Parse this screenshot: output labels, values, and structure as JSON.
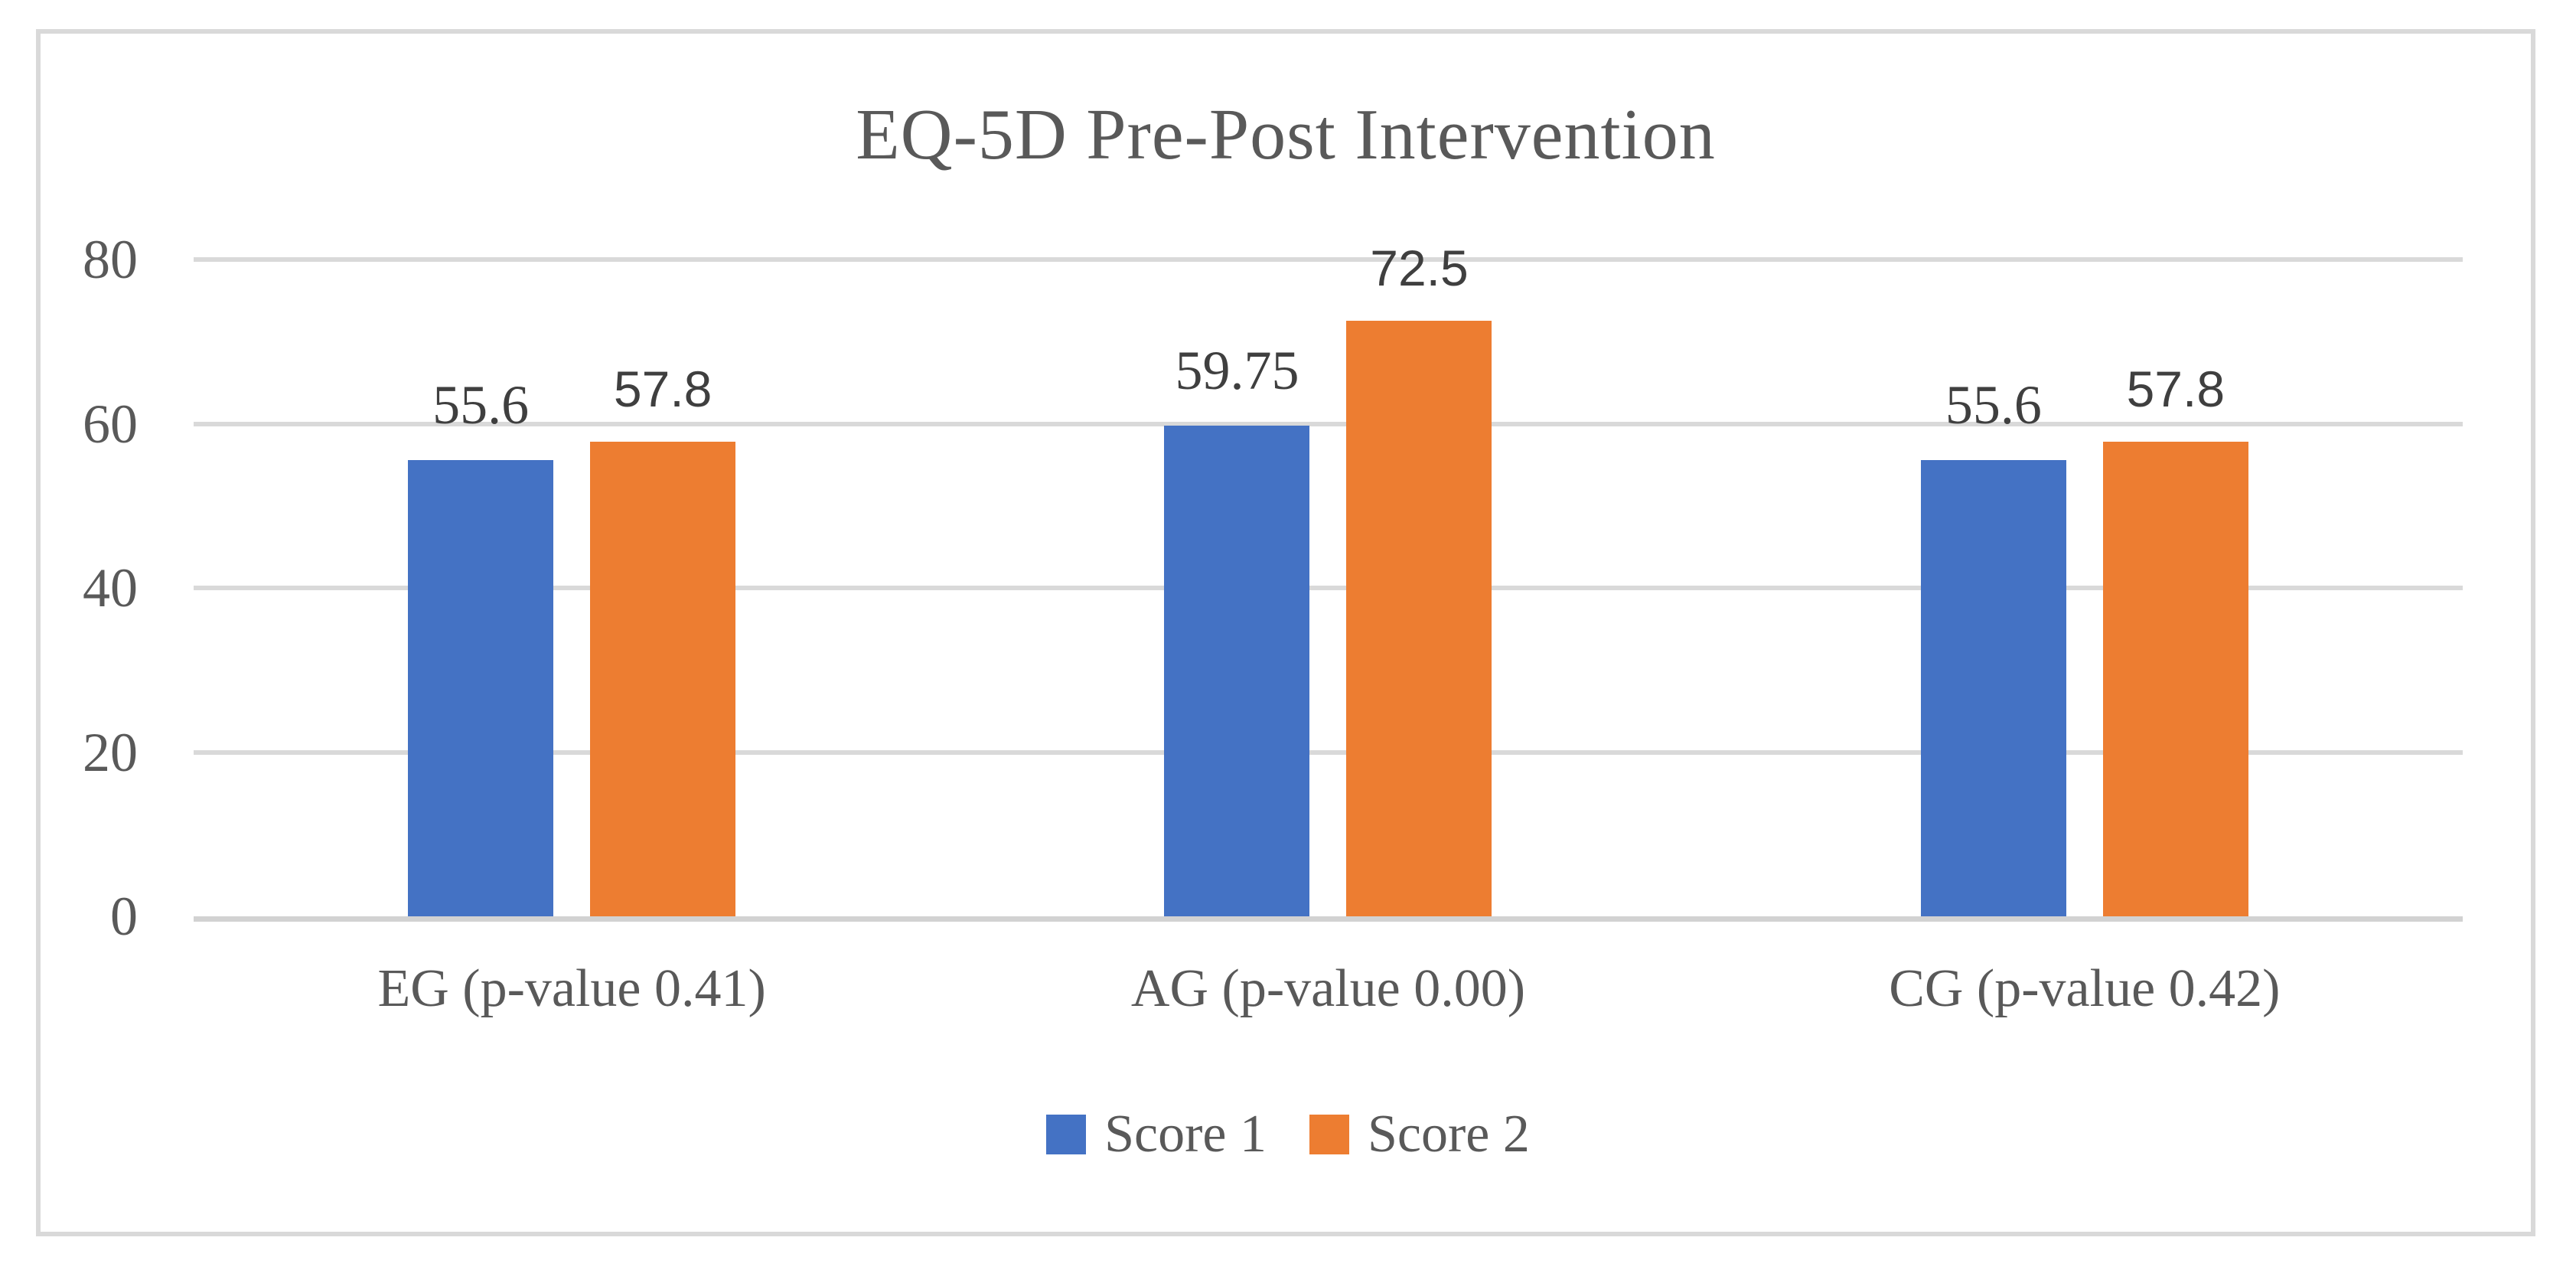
{
  "figure": {
    "background": "#FFFFFF",
    "border_color": "#D9D9D9"
  },
  "chart_data": {
    "type": "bar",
    "title": "EQ-5D Pre-Post Intervention",
    "categories": [
      "EG (p-value 0.41)",
      "AG (p-value 0.00)",
      "CG (p-value 0.42)"
    ],
    "series": [
      {
        "name": "Score 1",
        "color": "#4472C4",
        "values": [
          55.6,
          59.75,
          55.6
        ],
        "label_font": "serif"
      },
      {
        "name": "Score 2",
        "color": "#ED7D31",
        "values": [
          57.8,
          72.5,
          57.8
        ],
        "label_font": "sans"
      }
    ],
    "data_labels": {
      "Score 1": [
        "55.6",
        "59.75",
        "55.6"
      ],
      "Score 2": [
        "57.8",
        "72.5",
        "57.8"
      ]
    },
    "xlabel": "",
    "ylabel": "",
    "ylim": [
      0,
      80
    ],
    "yticks": [
      0,
      20,
      40,
      60,
      80
    ],
    "grid": true,
    "gridline_color": "#D9D9D9",
    "axis_line_color": "#D2D2D2",
    "title_color": "#595959",
    "tick_label_color": "#595959",
    "data_label_color": "#3F3F3F",
    "legend_position": "bottom",
    "legend_labels": [
      "Score 1",
      "Score 2"
    ]
  }
}
